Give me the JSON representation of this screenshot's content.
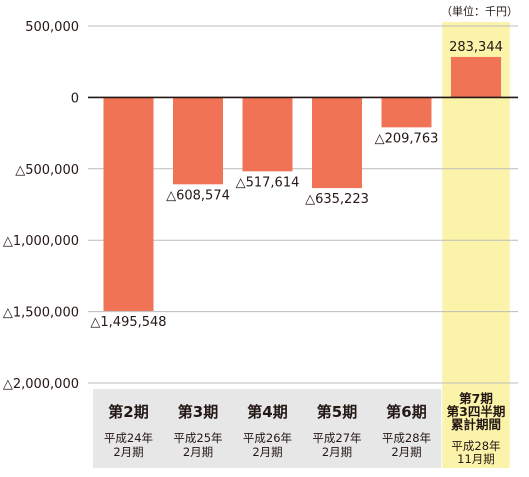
{
  "chart_data": {
    "type": "bar",
    "unit_note": "（単位：千円）",
    "categories": [
      {
        "period": "第2期",
        "date_lines": [
          "平成24年",
          "2月期"
        ]
      },
      {
        "period": "第3期",
        "date_lines": [
          "平成25年",
          "2月期"
        ]
      },
      {
        "period": "第4期",
        "date_lines": [
          "平成26年",
          "2月期"
        ]
      },
      {
        "period": "第5期",
        "date_lines": [
          "平成27年",
          "2月期"
        ]
      },
      {
        "period": "第6期",
        "date_lines": [
          "平成28年",
          "2月期"
        ]
      },
      {
        "period_lines": [
          "第7期",
          "第3四半期",
          "累計期間"
        ],
        "date_lines": [
          "平成28年",
          "11月期"
        ]
      }
    ],
    "values": [
      -1495548,
      -608574,
      -517614,
      -635223,
      -209763,
      283344
    ],
    "value_labels": [
      "△1,495,548",
      "△608,574",
      "△517,614",
      "△635,223",
      "△209,763",
      "283,344"
    ],
    "ylim": [
      -2000000,
      500000
    ],
    "yticks": [
      500000,
      0,
      -500000,
      -1000000,
      -1500000,
      -2000000
    ],
    "ytick_labels": [
      "500,000",
      "0",
      "△500,000",
      "△1,000,000",
      "△1,500,000",
      "△2,000,000"
    ],
    "grid": true,
    "highlight_index": 5,
    "colors": {
      "bar": "#f07356",
      "highlight_bg": "#fbf3a9",
      "category_bg": "#e7e7e8",
      "grid": "#bcbcbc",
      "axis": "#231815",
      "text": "#231815"
    }
  }
}
